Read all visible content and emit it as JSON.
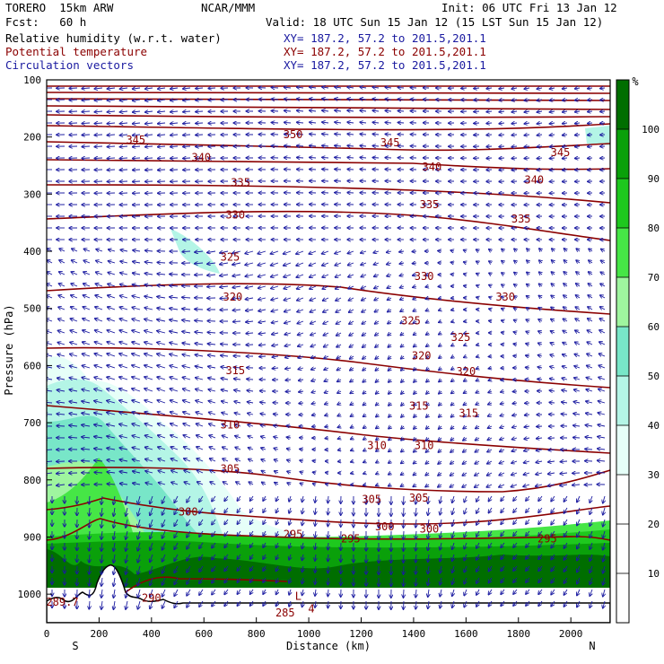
{
  "header": {
    "model": "TORERO  15km ARW",
    "org": "NCAR/MMM",
    "init": "Init: 06 UTC Fri 13 Jan 12",
    "fcst": "Fcst:   60 h",
    "valid": "Valid: 18 UTC Sun 15 Jan 12 (15 LST Sun 15 Jan 12)",
    "fields": [
      {
        "label": "Relative humidity (w.r.t. water)",
        "xy": "XY= 187.2, 57.2 to 201.5,201.1"
      },
      {
        "label": "Potential temperature",
        "xy": "XY= 187.2, 57.2 to 201.5,201.1"
      },
      {
        "label": "Circulation vectors",
        "xy": "XY= 187.2, 57.2 to 201.5,201.1"
      }
    ]
  },
  "colors": {
    "theta": "#8b0000",
    "vectors": "#1a1aa0",
    "rh_scale": [
      "#ffffff",
      "#ffffff",
      "#ffffff",
      "#e6fff8",
      "#b4f5e6",
      "#78e6c8",
      "#9ff59f",
      "#46e646",
      "#1ec81e",
      "#0aa00a",
      "#006e00"
    ]
  },
  "chart_data": {
    "type": "heatmap",
    "xlabel": "Distance (km)",
    "ylabel": "Pressure (hPa)",
    "xlim": [
      0,
      2150
    ],
    "ylim": [
      1050,
      100
    ],
    "x_ticks": [
      0,
      200,
      400,
      600,
      800,
      1000,
      1200,
      1400,
      1600,
      1800,
      2000
    ],
    "y_ticks": [
      100,
      200,
      300,
      400,
      500,
      600,
      700,
      800,
      900,
      1000
    ],
    "x_end_labels": {
      "left": "S",
      "right": "N"
    },
    "colorbar": {
      "unit": "%",
      "ticks": [
        10,
        20,
        30,
        40,
        50,
        60,
        70,
        80,
        90,
        100
      ]
    },
    "theta_labels": [
      {
        "text": "350",
        "x": 940,
        "p": 196
      },
      {
        "text": "345",
        "x": 340,
        "p": 205
      },
      {
        "text": "345",
        "x": 1310,
        "p": 210
      },
      {
        "text": "345",
        "x": 1960,
        "p": 227
      },
      {
        "text": "340",
        "x": 590,
        "p": 236
      },
      {
        "text": "340",
        "x": 1470,
        "p": 252
      },
      {
        "text": "340",
        "x": 1860,
        "p": 275
      },
      {
        "text": "335",
        "x": 740,
        "p": 280
      },
      {
        "text": "335",
        "x": 1460,
        "p": 318
      },
      {
        "text": "335",
        "x": 1810,
        "p": 343
      },
      {
        "text": "330",
        "x": 720,
        "p": 336
      },
      {
        "text": "330",
        "x": 1440,
        "p": 444
      },
      {
        "text": "330",
        "x": 1750,
        "p": 480
      },
      {
        "text": "325",
        "x": 700,
        "p": 410
      },
      {
        "text": "325",
        "x": 1390,
        "p": 522
      },
      {
        "text": "325",
        "x": 1580,
        "p": 551
      },
      {
        "text": "320",
        "x": 710,
        "p": 480
      },
      {
        "text": "320",
        "x": 1430,
        "p": 583
      },
      {
        "text": "320",
        "x": 1600,
        "p": 610
      },
      {
        "text": "315",
        "x": 720,
        "p": 609
      },
      {
        "text": "315",
        "x": 1420,
        "p": 671
      },
      {
        "text": "315",
        "x": 1610,
        "p": 683
      },
      {
        "text": "310",
        "x": 700,
        "p": 704
      },
      {
        "text": "310",
        "x": 1260,
        "p": 740
      },
      {
        "text": "310",
        "x": 1440,
        "p": 740
      },
      {
        "text": "305",
        "x": 700,
        "p": 781
      },
      {
        "text": "305",
        "x": 1240,
        "p": 834
      },
      {
        "text": "305",
        "x": 1420,
        "p": 832
      },
      {
        "text": "300",
        "x": 540,
        "p": 856
      },
      {
        "text": "300",
        "x": 1290,
        "p": 882
      },
      {
        "text": "300",
        "x": 1460,
        "p": 886
      },
      {
        "text": "295",
        "x": 940,
        "p": 895
      },
      {
        "text": "295",
        "x": 1160,
        "p": 903
      },
      {
        "text": "295",
        "x": 1910,
        "p": 903
      },
      {
        "text": "290",
        "x": 400,
        "p": 1007
      },
      {
        "text": "289.7",
        "x": 60,
        "p": 1014
      },
      {
        "text": "285",
        "x": 910,
        "p": 1033
      },
      {
        "text": "L",
        "x": 960,
        "p": 1004
      },
      {
        "text": "4",
        "x": 1010,
        "p": 1026
      }
    ]
  }
}
